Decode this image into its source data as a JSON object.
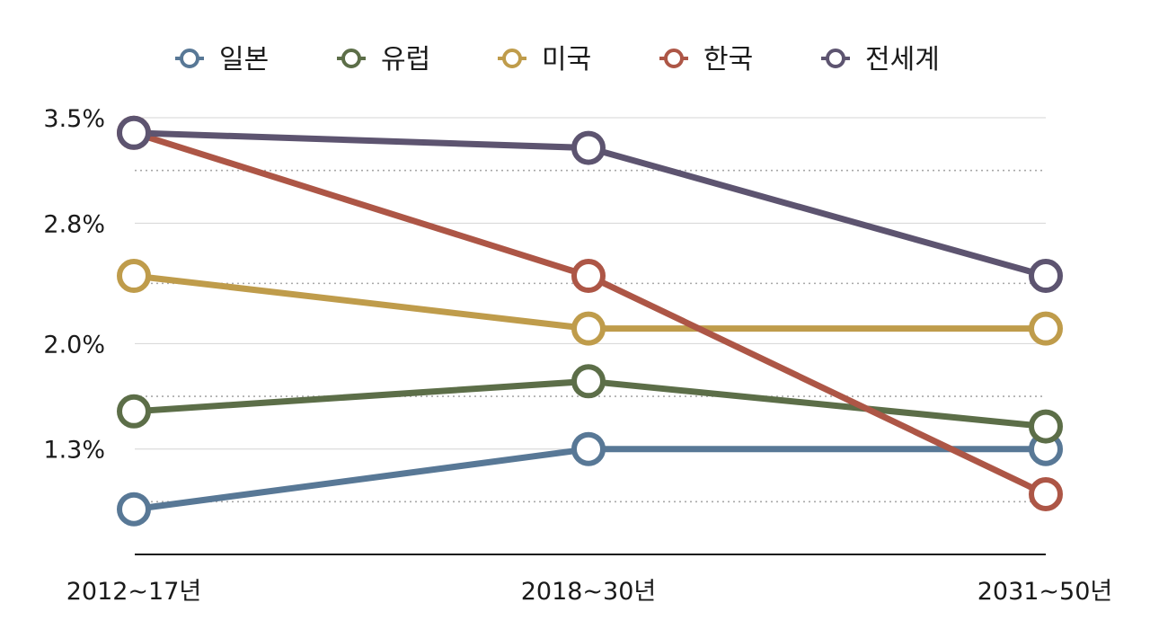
{
  "chart_data": {
    "type": "line",
    "categories": [
      "2012~17년",
      "2018~30년",
      "2031~50년"
    ],
    "y_ticks": [
      "1.3%",
      "2.0%",
      "2.8%",
      "3.5%"
    ],
    "y_tick_values": [
      1.3,
      2.0,
      2.8,
      3.5
    ],
    "y_minor_grid_values": [
      0.95,
      1.65,
      2.4,
      3.15
    ],
    "ylim": [
      0.6,
      3.56
    ],
    "grid": true,
    "legend_position": "top",
    "series": [
      {
        "name": "일본",
        "color": "#587896",
        "values": [
          0.9,
          1.3,
          1.3
        ]
      },
      {
        "name": "유럽",
        "color": "#5c6e48",
        "values": [
          1.55,
          1.75,
          1.45
        ]
      },
      {
        "name": "미국",
        "color": "#bf9c4b",
        "values": [
          2.45,
          2.1,
          2.1
        ]
      },
      {
        "name": "한국",
        "color": "#ad5646",
        "values": [
          3.4,
          2.45,
          1.0
        ]
      },
      {
        "name": "전세계",
        "color": "#5d5470",
        "values": [
          3.4,
          3.3,
          2.45
        ]
      }
    ]
  }
}
